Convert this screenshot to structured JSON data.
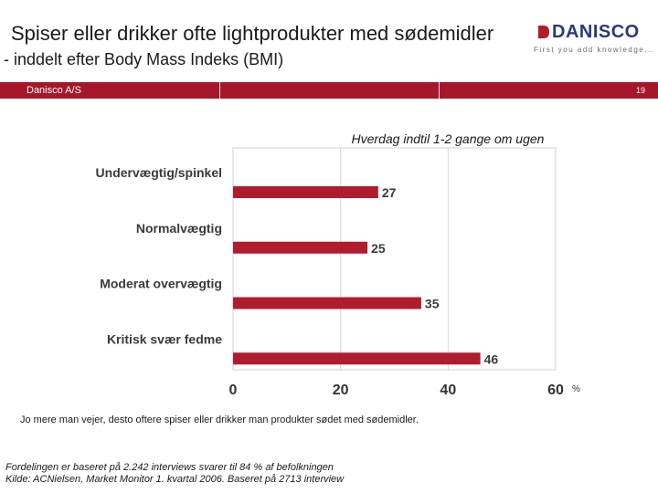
{
  "slide": {
    "title": "Spiser eller drikker ofte lightprodukter med sødemidler",
    "subtitle": "- inddelt efter Body Mass Indeks (BMI)",
    "banner_company": "Danisco A/S",
    "page_number": "19"
  },
  "logo": {
    "name": "DANISCO",
    "tagline": "First you add knowledge...",
    "colors": {
      "text": "#2a3a78",
      "mark": "#b31b2f"
    }
  },
  "chart_data": {
    "type": "bar",
    "orientation": "horizontal",
    "title": "Hverdag indtil 1-2 gange om ugen",
    "categories": [
      "Undervægtig/spinkel",
      "Normalvægtig",
      "Moderat overvægtig",
      "Kritisk svær fedme"
    ],
    "values": [
      27,
      25,
      35,
      46
    ],
    "data_labels": [
      "27",
      "25",
      "35",
      "46"
    ],
    "xlim": [
      0,
      60
    ],
    "xticks": [
      0,
      20,
      40,
      60
    ],
    "xtick_labels": [
      "0",
      "20",
      "40",
      "60"
    ],
    "unit_label": "%",
    "bar_color": "#b01c2e",
    "grid": true
  },
  "footnotes": {
    "note": "Jo mere man vejer, desto oftere spiser eller drikker man produkter sødet med sødemidler.",
    "source_line1": "Fordelingen er baseret på 2.242 interviews svarer til 84 % af befolkningen",
    "source_line2": "Kilde: ACNielsen, Market Monitor 1. kvartal 2006. Baseret på 2713 interview"
  }
}
